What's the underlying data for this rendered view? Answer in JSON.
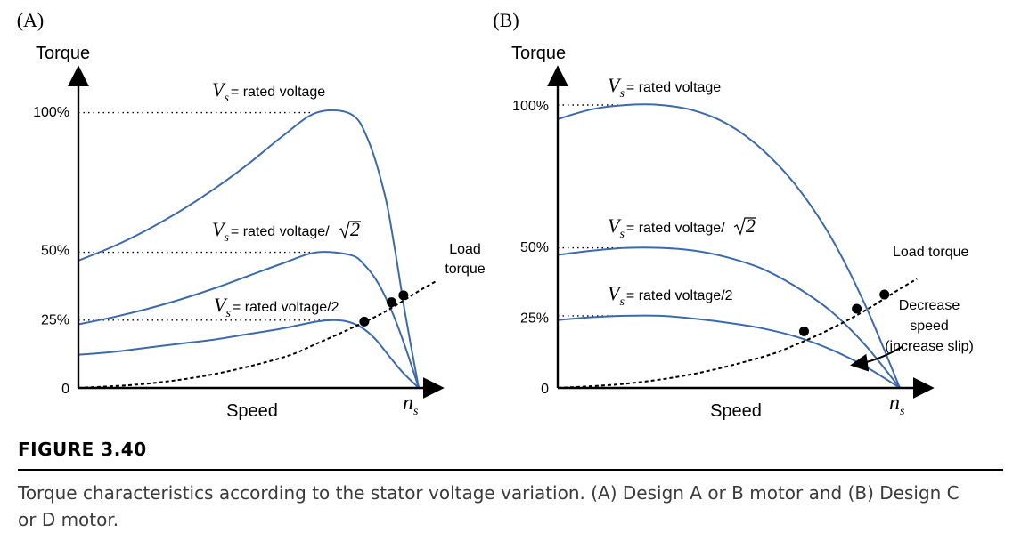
{
  "colors": {
    "curve": "#3d6aaa",
    "axis": "#000000",
    "load": "#000000"
  },
  "chart_data": [
    {
      "type": "line",
      "panel_label": "(A)",
      "ylabel": "Torque",
      "xlabel": "Speed",
      "x_end_label": {
        "main": "n",
        "sub": "s"
      },
      "xlim": [
        0,
        1
      ],
      "ylim": [
        0,
        100
      ],
      "y_ticks": [
        {
          "value": 100,
          "label": "100%"
        },
        {
          "value": 50,
          "label": "50%"
        },
        {
          "value": 25,
          "label": "25%"
        },
        {
          "value": 0,
          "label": "0"
        }
      ],
      "series": [
        {
          "label": {
            "v": "V",
            "sub": "s",
            "text": "= rated voltage",
            "radical": false
          },
          "x": [
            0,
            0.1,
            0.2,
            0.3,
            0.4,
            0.5,
            0.6,
            0.7,
            0.8,
            0.85,
            0.9,
            0.93,
            0.96,
            1.0
          ],
          "y": [
            46,
            51,
            57,
            64,
            72,
            81,
            91,
            99.5,
            99,
            90,
            70,
            50,
            27,
            0
          ]
        },
        {
          "label": {
            "v": "V",
            "sub": "s",
            "text": "= rated voltage/",
            "radical": true,
            "radicand": "2"
          },
          "x": [
            0,
            0.1,
            0.2,
            0.3,
            0.4,
            0.5,
            0.6,
            0.7,
            0.8,
            0.84,
            0.88,
            0.92,
            0.96,
            1.0
          ],
          "y": [
            23,
            25.5,
            28.5,
            32,
            36,
            40.5,
            45,
            49,
            48,
            44.5,
            38,
            28,
            15,
            0
          ]
        },
        {
          "label": {
            "v": "V",
            "sub": "s",
            "text": "= rated voltage/2",
            "radical": false
          },
          "x": [
            0,
            0.1,
            0.2,
            0.3,
            0.4,
            0.5,
            0.6,
            0.7,
            0.75,
            0.79,
            0.83,
            0.87,
            0.91,
            0.95,
            1.0
          ],
          "y": [
            12,
            13,
            14.5,
            16,
            17.5,
            19.5,
            21.5,
            24,
            24.5,
            24,
            22,
            18,
            12,
            6,
            0
          ]
        }
      ],
      "load_torque": {
        "label_lines": [
          "Load",
          "torque"
        ],
        "x": [
          0,
          0.2,
          0.4,
          0.6,
          0.7,
          0.8,
          0.9,
          1.0,
          1.05
        ],
        "y": [
          0,
          1.5,
          5,
          11,
          16,
          21.5,
          27.5,
          35,
          38.5
        ]
      },
      "operating_points": [
        {
          "x": 0.84,
          "y": 24
        },
        {
          "x": 0.92,
          "y": 31
        },
        {
          "x": 0.955,
          "y": 33.5
        }
      ]
    },
    {
      "type": "line",
      "panel_label": "(B)",
      "ylabel": "Torque",
      "xlabel": "Speed",
      "x_end_label": {
        "main": "n",
        "sub": "s"
      },
      "xlim": [
        0,
        1
      ],
      "ylim": [
        0,
        100
      ],
      "y_ticks": [
        {
          "value": 100,
          "label": "100%"
        },
        {
          "value": 50,
          "label": "50%"
        },
        {
          "value": 25,
          "label": "25%"
        },
        {
          "value": 0,
          "label": "0"
        }
      ],
      "series": [
        {
          "label": {
            "v": "V",
            "sub": "s",
            "text": "= rated voltage",
            "radical": false
          },
          "x": [
            0,
            0.1,
            0.2,
            0.3,
            0.4,
            0.5,
            0.6,
            0.7,
            0.8,
            0.9,
            1.0
          ],
          "y": [
            95,
            98.5,
            100,
            100,
            98,
            93,
            84,
            71,
            53,
            29,
            0
          ]
        },
        {
          "label": {
            "v": "V",
            "sub": "s",
            "text": "= rated voltage/",
            "radical": true,
            "radicand": "2"
          },
          "x": [
            0,
            0.1,
            0.2,
            0.3,
            0.4,
            0.5,
            0.6,
            0.7,
            0.8,
            0.9,
            1.0
          ],
          "y": [
            47,
            48.5,
            49.5,
            49.5,
            48.5,
            46,
            42,
            35.5,
            27,
            15,
            0
          ]
        },
        {
          "label": {
            "v": "V",
            "sub": "s",
            "text": "= rated voltage/2",
            "radical": false
          },
          "x": [
            0,
            0.1,
            0.2,
            0.3,
            0.4,
            0.5,
            0.6,
            0.7,
            0.8,
            0.9,
            1.0
          ],
          "y": [
            24,
            25,
            25.5,
            25.5,
            24.5,
            23,
            21,
            18,
            13.5,
            7.5,
            0
          ]
        }
      ],
      "load_torque": {
        "label_lines": [
          "Load torque"
        ],
        "x": [
          0,
          0.2,
          0.4,
          0.6,
          0.7,
          0.8,
          0.9,
          1.0,
          1.05
        ],
        "y": [
          0,
          1.5,
          5,
          11,
          15.5,
          21,
          27.5,
          35,
          38.5
        ]
      },
      "operating_points": [
        {
          "x": 0.72,
          "y": 20
        },
        {
          "x": 0.874,
          "y": 28
        },
        {
          "x": 0.955,
          "y": 33
        }
      ],
      "annotation": {
        "lines": [
          "Decrease",
          "speed",
          "(increase slip)"
        ]
      }
    }
  ],
  "caption": {
    "number": "FIGURE 3.40",
    "text": "Torque characteristics according to the stator voltage variation. (A) Design A or B motor and (B) Design C or D motor."
  }
}
